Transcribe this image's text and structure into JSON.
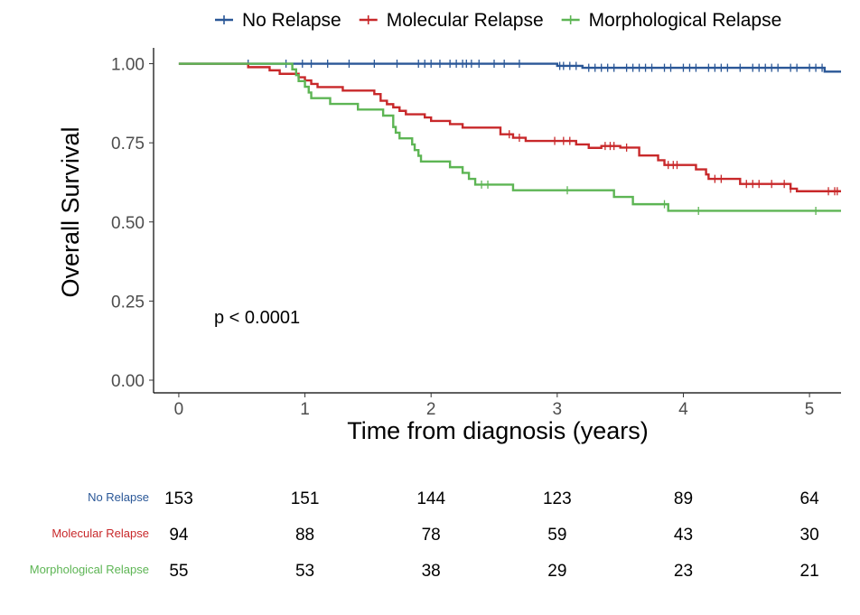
{
  "chart_data": {
    "type": "line",
    "subtype": "kaplan-meier",
    "ylabel": "Overall Survival",
    "xlabel": "Time from diagnosis (years)",
    "xlim": [
      -0.2,
      5.25
    ],
    "ylim": [
      -0.04,
      1.05
    ],
    "x_ticks": [
      0,
      1,
      2,
      3,
      4,
      5
    ],
    "x_tick_labels": [
      "0",
      "1",
      "2",
      "3",
      "4",
      "5"
    ],
    "y_ticks": [
      0,
      0.25,
      0.5,
      0.75,
      1.0
    ],
    "y_tick_labels": [
      "0.00",
      "0.25",
      "0.50",
      "0.75",
      "1.00"
    ],
    "grid": false,
    "legend_position": "top",
    "annotation": "p < 0.0001",
    "series": [
      {
        "name": "No Relapse",
        "color": "#2a5797",
        "steps": [
          [
            0,
            1.0
          ],
          [
            3.0,
            0.993
          ],
          [
            3.2,
            0.987
          ],
          [
            5.12,
            0.975
          ]
        ],
        "end_x": 5.25,
        "censor_x": [
          0.55,
          0.85,
          0.98,
          1.05,
          1.18,
          1.35,
          1.55,
          1.73,
          1.9,
          1.95,
          2.0,
          2.07,
          2.15,
          2.2,
          2.25,
          2.28,
          2.32,
          2.38,
          2.5,
          2.58,
          2.7,
          3.02,
          3.05,
          3.1,
          3.15,
          3.25,
          3.3,
          3.35,
          3.4,
          3.45,
          3.55,
          3.6,
          3.65,
          3.7,
          3.75,
          3.85,
          3.9,
          4.0,
          4.05,
          4.1,
          4.2,
          4.25,
          4.3,
          4.35,
          4.45,
          4.55,
          4.6,
          4.65,
          4.7,
          4.75,
          4.85,
          4.9,
          5.0,
          5.05,
          5.1
        ]
      },
      {
        "name": "Molecular Relapse",
        "color": "#c8282a",
        "steps": [
          [
            0,
            1.0
          ],
          [
            0.55,
            0.989
          ],
          [
            0.72,
            0.979
          ],
          [
            0.8,
            0.968
          ],
          [
            0.95,
            0.957
          ],
          [
            1.0,
            0.947
          ],
          [
            1.05,
            0.936
          ],
          [
            1.1,
            0.926
          ],
          [
            1.3,
            0.915
          ],
          [
            1.55,
            0.904
          ],
          [
            1.6,
            0.883
          ],
          [
            1.65,
            0.872
          ],
          [
            1.7,
            0.862
          ],
          [
            1.75,
            0.851
          ],
          [
            1.8,
            0.84
          ],
          [
            1.95,
            0.83
          ],
          [
            2.0,
            0.819
          ],
          [
            2.15,
            0.809
          ],
          [
            2.25,
            0.798
          ],
          [
            2.55,
            0.777
          ],
          [
            2.65,
            0.766
          ],
          [
            2.75,
            0.756
          ],
          [
            3.15,
            0.745
          ],
          [
            3.25,
            0.734
          ],
          [
            3.35,
            0.74
          ],
          [
            3.5,
            0.738
          ],
          [
            3.5,
            0.735
          ],
          [
            3.65,
            0.71
          ],
          [
            3.8,
            0.695
          ],
          [
            3.85,
            0.68
          ],
          [
            4.1,
            0.666
          ],
          [
            4.18,
            0.65
          ],
          [
            4.2,
            0.636
          ],
          [
            4.45,
            0.62
          ],
          [
            4.85,
            0.605
          ],
          [
            4.9,
            0.597
          ]
        ],
        "end_x": 5.25,
        "censor_x": [
          2.62,
          2.7,
          2.98,
          3.05,
          3.1,
          3.38,
          3.42,
          3.45,
          3.55,
          3.88,
          3.92,
          3.95,
          4.25,
          4.3,
          4.5,
          4.55,
          4.6,
          4.7,
          4.8,
          4.85,
          5.15,
          5.2,
          5.22
        ]
      },
      {
        "name": "Morphological Relapse",
        "color": "#5db554",
        "steps": [
          [
            0,
            1.0
          ],
          [
            0.9,
            0.982
          ],
          [
            0.93,
            0.964
          ],
          [
            0.95,
            0.945
          ],
          [
            1.0,
            0.927
          ],
          [
            1.03,
            0.909
          ],
          [
            1.05,
            0.891
          ],
          [
            1.2,
            0.873
          ],
          [
            1.42,
            0.855
          ],
          [
            1.62,
            0.836
          ],
          [
            1.7,
            0.8
          ],
          [
            1.72,
            0.782
          ],
          [
            1.75,
            0.764
          ],
          [
            1.85,
            0.745
          ],
          [
            1.87,
            0.727
          ],
          [
            1.9,
            0.709
          ],
          [
            1.92,
            0.691
          ],
          [
            2.15,
            0.673
          ],
          [
            2.25,
            0.655
          ],
          [
            2.3,
            0.636
          ],
          [
            2.35,
            0.618
          ],
          [
            2.65,
            0.6
          ],
          [
            3.45,
            0.579
          ],
          [
            3.6,
            0.556
          ],
          [
            3.88,
            0.535
          ]
        ],
        "end_x": 5.25,
        "censor_x": [
          2.4,
          2.45,
          3.08,
          3.85,
          4.12,
          5.05
        ]
      }
    ]
  },
  "risk_table": {
    "times": [
      0,
      1,
      2,
      3,
      4,
      5
    ],
    "rows": [
      {
        "label": "No Relapse",
        "color": "#2a5797",
        "values": [
          "153",
          "151",
          "144",
          "123",
          "89",
          "64"
        ]
      },
      {
        "label": "Molecular Relapse",
        "color": "#c8282a",
        "values": [
          "94",
          "88",
          "78",
          "59",
          "43",
          "30"
        ]
      },
      {
        "label": "Morphological Relapse",
        "color": "#5db554",
        "values": [
          "55",
          "53",
          "38",
          "29",
          "23",
          "21"
        ]
      }
    ]
  }
}
